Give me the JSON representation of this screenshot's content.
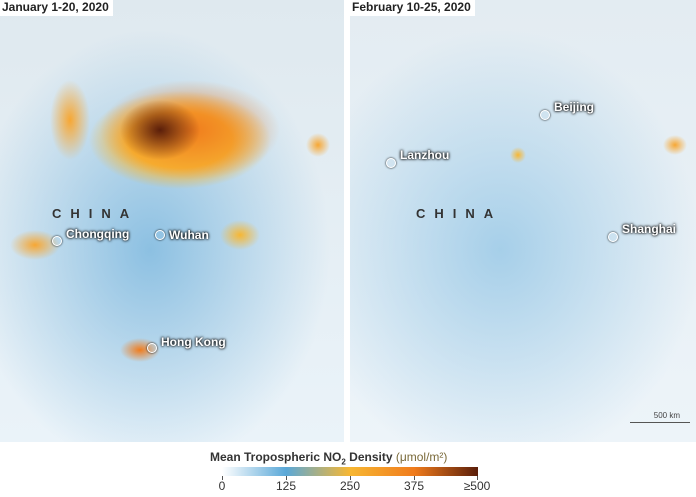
{
  "legend": {
    "title": "Mean Tropospheric NO",
    "subscript": "2",
    "title_suffix": " Density",
    "units": "(μmol/m²)",
    "ticks": [
      "0",
      "125",
      "250",
      "375",
      "≥500"
    ],
    "colors": [
      "#ffffff",
      "#5aa8d8",
      "#f7b733",
      "#f07c1d",
      "#5a1e0a"
    ]
  },
  "panels": [
    {
      "title": "January 1-20, 2020",
      "country_label": "CHINA",
      "cities": [
        "Chongqing",
        "Wuhan",
        "Hong Kong"
      ]
    },
    {
      "title": "February 10-25, 2020",
      "country_label": "CHINA",
      "cities": [
        "Beijing",
        "Lanzhou",
        "Shanghai"
      ],
      "scale_bar": "500 km"
    }
  ]
}
